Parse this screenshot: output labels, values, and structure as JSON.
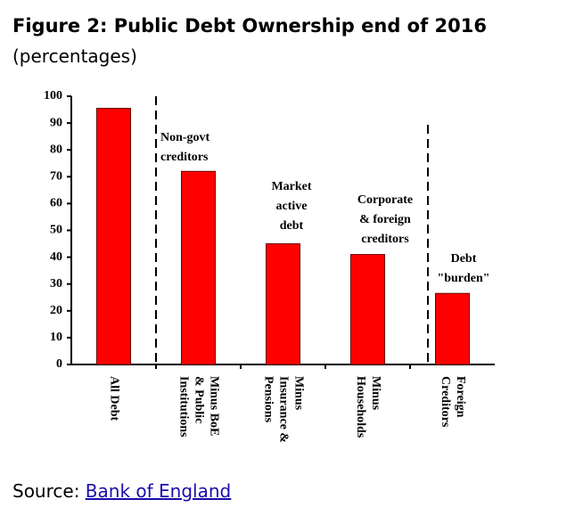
{
  "chart_data": {
    "type": "bar",
    "title": "Figure 2: Public Debt Ownership end of 2016",
    "subtitle": "(percentages)",
    "categories": [
      "All Debt",
      "Minus BoE\n& Public\nInstitutions",
      "Minus\nInsurance &\nPensions",
      "Minus\nHouseholds",
      "Foreign\nCreditors"
    ],
    "values": [
      95.5,
      72,
      45,
      41,
      26.5
    ],
    "color": "#ff0000",
    "ylim": [
      0,
      100
    ],
    "yticks": [
      0,
      10,
      20,
      30,
      40,
      50,
      60,
      70,
      80,
      90,
      100
    ],
    "grid": false,
    "annotations": [
      "Non-govt\ncreditors",
      "Market\nactive\ndebt",
      "Corporate\n& foreign\ncreditors",
      "Debt\n\"burden\""
    ]
  },
  "source": {
    "label": "Source:",
    "link": "Bank of England"
  }
}
